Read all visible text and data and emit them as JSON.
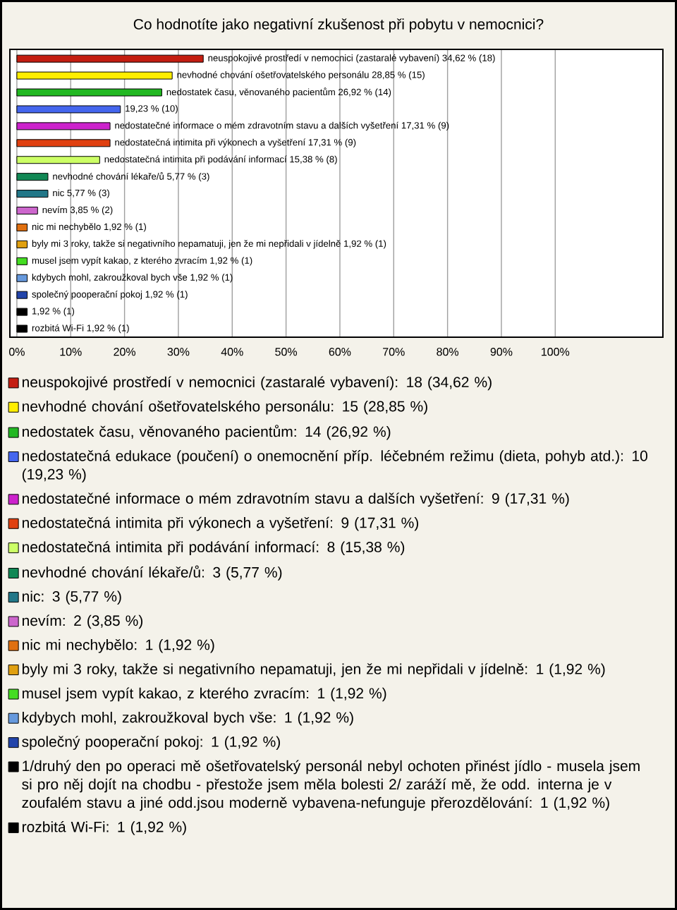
{
  "chart_data": {
    "type": "bar",
    "orientation": "horizontal",
    "stacked": true,
    "title": "Co hodnotíte jako negativní zkušenost při pobytu v nemocnici?",
    "categories": [
      null,
      null,
      null,
      null,
      null,
      null,
      null,
      null,
      null,
      null,
      null,
      null,
      null,
      null,
      null,
      null,
      null
    ],
    "series": [
      {
        "name": "neuspokojivé prostředí v nemocnici (zastaralé vybavení): 18 (34,62 %)",
        "color": "#c41e12",
        "values": [
          34.62,
          null,
          null,
          null,
          null,
          null,
          null,
          null,
          null,
          null,
          null,
          null,
          null,
          null,
          null,
          null,
          null
        ],
        "value_labels": [
          "neuspokojivé prostředí v nemocnici (zastaralé vybavení) 34,62 % (18)",
          null,
          null,
          null,
          null,
          null,
          null,
          null,
          null,
          null,
          null,
          null,
          null,
          null,
          null,
          null,
          null
        ]
      },
      {
        "name": "nevhodné chování ošetřovatelského personálu: 15 (28,85 %)",
        "color": "#ffee00",
        "values": [
          null,
          28.85,
          null,
          null,
          null,
          null,
          null,
          null,
          null,
          null,
          null,
          null,
          null,
          null,
          null,
          null,
          null
        ],
        "value_labels": [
          null,
          "nevhodné chování ošetřovatelského personálu 28,85 % (15)",
          null,
          null,
          null,
          null,
          null,
          null,
          null,
          null,
          null,
          null,
          null,
          null,
          null,
          null,
          null
        ]
      },
      {
        "name": "nedostatek času, věnovaného pacientům: 14 (26,92 %)",
        "color": "#22b822",
        "values": [
          null,
          null,
          26.92,
          null,
          null,
          null,
          null,
          null,
          null,
          null,
          null,
          null,
          null,
          null,
          null,
          null,
          null
        ],
        "value_labels": [
          null,
          null,
          "nedostatek času, věnovaného pacientům 26,92 % (14)",
          null,
          null,
          null,
          null,
          null,
          null,
          null,
          null,
          null,
          null,
          null,
          null,
          null,
          null
        ]
      },
      {
        "name": "nedostatečná edukace (poučení) o onemocnění příp. léčebném režimu (dieta, pohyb atd.): 10 (19,23 %)",
        "color": "#4466ee",
        "values": [
          null,
          null,
          null,
          19.23,
          null,
          null,
          null,
          null,
          null,
          null,
          null,
          null,
          null,
          null,
          null,
          null,
          null
        ],
        "value_labels": [
          null,
          null,
          null,
          "19,23 % (10)",
          null,
          null,
          null,
          null,
          null,
          null,
          null,
          null,
          null,
          null,
          null,
          null,
          null
        ]
      },
      {
        "name": "nedostatečné informace o mém zdravotním stavu a dalších vyšetření: 9 (17,31 %)",
        "color": "#cc22cc",
        "values": [
          null,
          null,
          null,
          null,
          17.31,
          null,
          null,
          null,
          null,
          null,
          null,
          null,
          null,
          null,
          null,
          null,
          null
        ],
        "value_labels": [
          null,
          null,
          null,
          null,
          "nedostatečné informace o mém zdravotním stavu a dalších vyšetření 17,31 % (9)",
          null,
          null,
          null,
          null,
          null,
          null,
          null,
          null,
          null,
          null,
          null,
          null
        ]
      },
      {
        "name": "nedostatečná intimita při výkonech a vyšetření: 9 (17,31 %)",
        "color": "#e04010",
        "values": [
          null,
          null,
          null,
          null,
          null,
          17.31,
          null,
          null,
          null,
          null,
          null,
          null,
          null,
          null,
          null,
          null,
          null
        ],
        "value_labels": [
          null,
          null,
          null,
          null,
          null,
          "nedostatečná intimita při výkonech a vyšetření 17,31 % (9)",
          null,
          null,
          null,
          null,
          null,
          null,
          null,
          null,
          null,
          null,
          null
        ]
      },
      {
        "name": "nedostatečná intimita při podávání informací: 8 (15,38 %)",
        "color": "#ccff66",
        "values": [
          null,
          null,
          null,
          null,
          null,
          null,
          15.38,
          null,
          null,
          null,
          null,
          null,
          null,
          null,
          null,
          null,
          null
        ],
        "value_labels": [
          null,
          null,
          null,
          null,
          null,
          null,
          "nedostatečná intimita při podávání informací 15,38 % (8)",
          null,
          null,
          null,
          null,
          null,
          null,
          null,
          null,
          null,
          null
        ]
      },
      {
        "name": "nevhodné chování lékaře/ů: 3 (5,77 %)",
        "color": "#118855",
        "values": [
          null,
          null,
          null,
          null,
          null,
          null,
          null,
          5.77,
          null,
          null,
          null,
          null,
          null,
          null,
          null,
          null,
          null
        ],
        "value_labels": [
          null,
          null,
          null,
          null,
          null,
          null,
          null,
          "nevhodné chování lékaře/ů 5,77 % (3)",
          null,
          null,
          null,
          null,
          null,
          null,
          null,
          null,
          null
        ]
      },
      {
        "name": "nic: 3 (5,77 %)",
        "color": "#227788",
        "values": [
          null,
          null,
          null,
          null,
          null,
          null,
          null,
          null,
          5.77,
          null,
          null,
          null,
          null,
          null,
          null,
          null,
          null
        ],
        "value_labels": [
          null,
          null,
          null,
          null,
          null,
          null,
          null,
          null,
          "nic 5,77 % (3)",
          null,
          null,
          null,
          null,
          null,
          null,
          null,
          null
        ]
      },
      {
        "name": "nevím: 2 (3,85 %)",
        "color": "#cc66cc",
        "values": [
          null,
          null,
          null,
          null,
          null,
          null,
          null,
          null,
          null,
          3.85,
          null,
          null,
          null,
          null,
          null,
          null,
          null
        ],
        "value_labels": [
          null,
          null,
          null,
          null,
          null,
          null,
          null,
          null,
          null,
          "nevím 3,85 % (2)",
          null,
          null,
          null,
          null,
          null,
          null,
          null
        ]
      },
      {
        "name": "nic mi nechybělo: 1 (1,92 %)",
        "color": "#e07010",
        "values": [
          null,
          null,
          null,
          null,
          null,
          null,
          null,
          null,
          null,
          null,
          1.92,
          null,
          null,
          null,
          null,
          null,
          null
        ],
        "value_labels": [
          null,
          null,
          null,
          null,
          null,
          null,
          null,
          null,
          null,
          null,
          "nic mi nechybělo 1,92 % (1)",
          null,
          null,
          null,
          null,
          null,
          null
        ]
      },
      {
        "name": "byly mi 3 roky, takže si negativního nepamatuji, jen že mi nepřidali v jídelně: 1 (1,92 %)",
        "color": "#e0a010",
        "values": [
          null,
          null,
          null,
          null,
          null,
          null,
          null,
          null,
          null,
          null,
          null,
          1.92,
          null,
          null,
          null,
          null,
          null
        ],
        "value_labels": [
          null,
          null,
          null,
          null,
          null,
          null,
          null,
          null,
          null,
          null,
          null,
          "byly mi 3 roky, takže si negativního nepamatuji, jen že mi nepřidali v jídelně 1,92 % (1)",
          null,
          null,
          null,
          null,
          null
        ]
      },
      {
        "name": "musel jsem vypít kakao, z kterého zvracím: 1 (1,92 %)",
        "color": "#44dd22",
        "values": [
          null,
          null,
          null,
          null,
          null,
          null,
          null,
          null,
          null,
          null,
          null,
          null,
          1.92,
          null,
          null,
          null,
          null
        ],
        "value_labels": [
          null,
          null,
          null,
          null,
          null,
          null,
          null,
          null,
          null,
          null,
          null,
          null,
          "musel jsem vypít kakao, z kterého zvracím 1,92 % (1)",
          null,
          null,
          null,
          null
        ]
      },
      {
        "name": "kdybych mohl, zakroužkoval bych vše: 1 (1,92 %)",
        "color": "#6699dd",
        "values": [
          null,
          null,
          null,
          null,
          null,
          null,
          null,
          null,
          null,
          null,
          null,
          null,
          null,
          1.92,
          null,
          null,
          null
        ],
        "value_labels": [
          null,
          null,
          null,
          null,
          null,
          null,
          null,
          null,
          null,
          null,
          null,
          null,
          null,
          "kdybych mohl, zakroužkoval bych vše 1,92 % (1)",
          null,
          null,
          null
        ]
      },
      {
        "name": "společný pooperační pokoj: 1 (1,92 %)",
        "color": "#2244aa",
        "values": [
          null,
          null,
          null,
          null,
          null,
          null,
          null,
          null,
          null,
          null,
          null,
          null,
          null,
          null,
          1.92,
          null,
          null
        ],
        "value_labels": [
          null,
          null,
          null,
          null,
          null,
          null,
          null,
          null,
          null,
          null,
          null,
          null,
          null,
          null,
          "společný pooperační pokoj 1,92 % (1)",
          null,
          null
        ]
      },
      {
        "name": "1/druhý den po operaci mě ošetřovatelský personál nebyl ochoten přinést jídlo - musela jsem si pro něj dojít na chodbu - přestože jsem měla bolesti 2/ zaráží mě, že odd. interna je v zoufalém stavu a jiné odd.jsou moderně vybavena-nefunguje přerozdělování: 1 (1,92 %)",
        "color": "#000000",
        "values": [
          null,
          null,
          null,
          null,
          null,
          null,
          null,
          null,
          null,
          null,
          null,
          null,
          null,
          null,
          null,
          1.92,
          null
        ],
        "value_labels": [
          null,
          null,
          null,
          null,
          null,
          null,
          null,
          null,
          null,
          null,
          null,
          null,
          null,
          null,
          null,
          "1,92 % (1)",
          null
        ]
      },
      {
        "name": "rozbitá Wi-Fi: 1 (1,92 %)",
        "color": "#000000",
        "values": [
          null,
          null,
          null,
          null,
          null,
          null,
          null,
          null,
          null,
          null,
          null,
          null,
          null,
          null,
          null,
          null,
          1.92
        ],
        "value_labels": [
          null,
          null,
          null,
          null,
          null,
          null,
          null,
          null,
          null,
          null,
          null,
          null,
          null,
          null,
          null,
          null,
          "rozbitá Wi-Fi 1,92 % (1)"
        ]
      }
    ],
    "xlim": [
      -1.3,
      120
    ],
    "xticks": [
      {
        "value": 0,
        "label": "0%"
      },
      {
        "value": 10,
        "label": "10%"
      },
      {
        "value": 20,
        "label": "20%"
      },
      {
        "value": 30,
        "label": "30%"
      },
      {
        "value": 40,
        "label": "40%"
      },
      {
        "value": 50,
        "label": "50%"
      },
      {
        "value": 60,
        "label": "60%"
      },
      {
        "value": 70,
        "label": "70%"
      },
      {
        "value": 80,
        "label": "80%"
      },
      {
        "value": 90,
        "label": "90%"
      },
      {
        "value": 100,
        "label": "100%"
      }
    ],
    "grid": "x",
    "legend": "bottom",
    "tick_labels": "x"
  }
}
